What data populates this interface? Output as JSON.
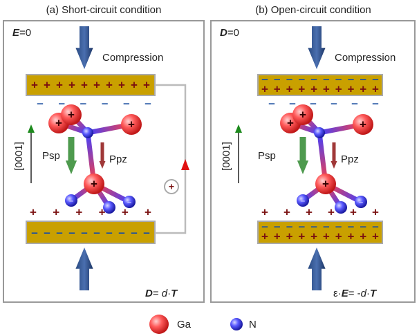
{
  "panels": [
    {
      "title": "(a) Short-circuit condition",
      "condition": {
        "symbol": "E",
        "text": "=0"
      },
      "compression": "Compression",
      "axis": "[0001]",
      "psp": "Psp",
      "ppz": "Ppz",
      "equation": [
        "D",
        "= ",
        "d",
        "·",
        "T"
      ]
    },
    {
      "title": "(b) Open-circuit condition",
      "condition": {
        "symbol": "D",
        "text": "=0"
      },
      "compression": "Compression",
      "axis": "[0001]",
      "psp": "Psp",
      "ppz": "Ppz",
      "equation": [
        "ε·",
        "E",
        "= -",
        "d",
        "·",
        "T"
      ]
    }
  ],
  "charges": {
    "plus": "+",
    "minus": "–"
  },
  "legend": [
    {
      "label": "Ga"
    },
    {
      "label": "N"
    }
  ]
}
